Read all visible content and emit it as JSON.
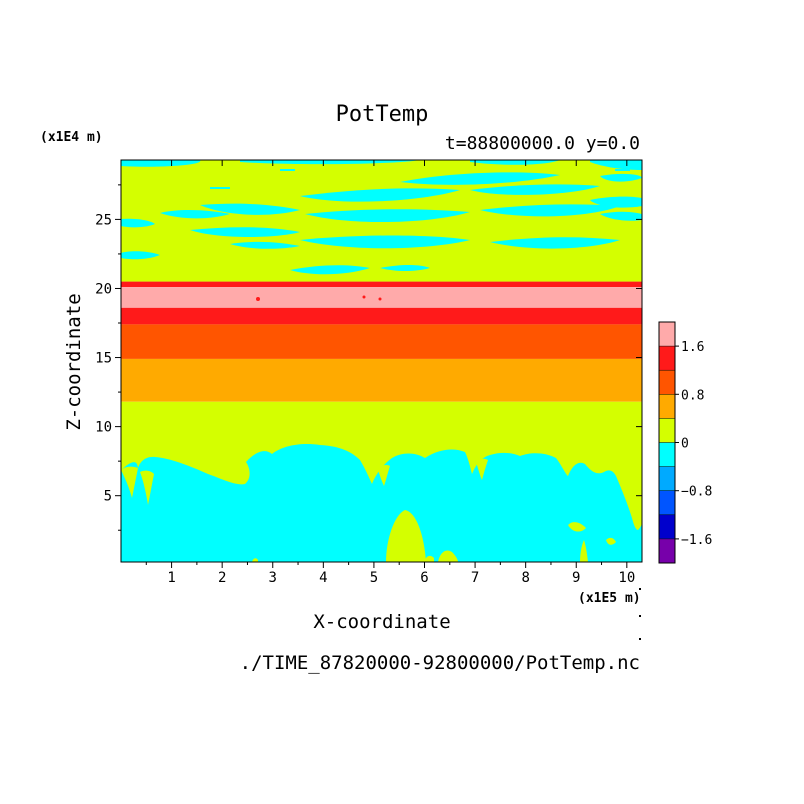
{
  "chart_data": {
    "type": "heatmap",
    "title": "PotTemp",
    "subtitle": "t=88800000.0 y=0.0",
    "xlabel": "X-coordinate",
    "ylabel": "Z-coordinate",
    "x_unit": "(x1E5 m)",
    "y_unit": "(x1E4 m)",
    "footer": "./TIME_87820000-92800000/PotTemp.nc",
    "xlim": [
      0,
      10.3
    ],
    "ylim": [
      0.2,
      29.3
    ],
    "xticks": [
      1,
      2,
      3,
      4,
      5,
      6,
      7,
      8,
      9,
      10
    ],
    "yticks": [
      5,
      10,
      15,
      20,
      25
    ],
    "colorbar": {
      "ticks": [
        1.6,
        0.8,
        0,
        -0.8,
        -1.6
      ],
      "tick_labels": [
        "1.6",
        "0.8",
        "0",
        "−0.8",
        "−1.6"
      ],
      "levels": [
        {
          "low": 1.6,
          "high": 2.0,
          "color": "#ffaaaa"
        },
        {
          "low": 1.2,
          "high": 1.6,
          "color": "#ff1a1a"
        },
        {
          "low": 0.8,
          "high": 1.2,
          "color": "#ff5500"
        },
        {
          "low": 0.4,
          "high": 0.8,
          "color": "#ffaa00"
        },
        {
          "low": 0.0,
          "high": 0.4,
          "color": "#d4ff00"
        },
        {
          "low": -0.4,
          "high": 0.0,
          "color": "#00ffff"
        },
        {
          "low": -0.8,
          "high": -0.4,
          "color": "#00aaff"
        },
        {
          "low": -1.2,
          "high": -0.8,
          "color": "#0055ff"
        },
        {
          "low": -1.6,
          "high": -1.2,
          "color": "#0000cc"
        },
        {
          "low": -2.0,
          "high": -1.6,
          "color": "#7700aa"
        }
      ]
    },
    "layers": [
      {
        "z_low": 20.1,
        "z_high": 20.5,
        "level": 1.4
      },
      {
        "z_low": 18.6,
        "z_high": 20.1,
        "level": 1.8
      },
      {
        "z_low": 17.4,
        "z_high": 18.6,
        "level": 1.4
      },
      {
        "z_low": 14.9,
        "z_high": 17.4,
        "level": 1.0
      },
      {
        "z_low": 11.8,
        "z_high": 14.9,
        "level": 0.6
      },
      {
        "z_low": 0.2,
        "z_high": 11.8,
        "level": 0.2
      },
      {
        "z_low": 20.5,
        "z_high": 29.3,
        "level": 0.2
      }
    ]
  }
}
